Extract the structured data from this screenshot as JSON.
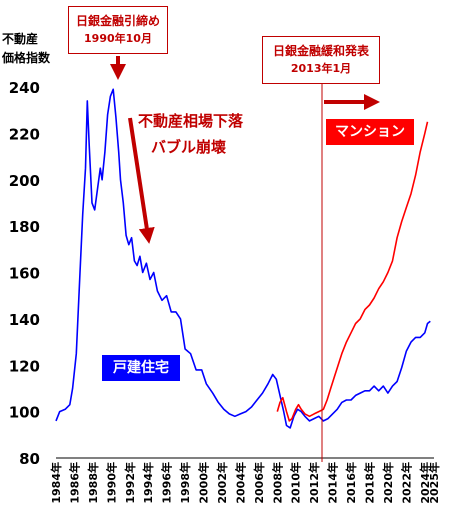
{
  "y_title_line1": "不動産",
  "y_title_line2": "価格指数",
  "annotations": {
    "boj_tightening": {
      "line1": "日銀金融引締め",
      "line2": "1990年10月"
    },
    "boj_easing": {
      "line1": "日銀金融緩和発表",
      "line2": "2013年1月"
    },
    "crash_line1": "不動産相場下落",
    "crash_line2": "バブル崩壊"
  },
  "colors": {
    "house": "#0000ff",
    "condo": "#ff0000",
    "annotation": "#c00000",
    "arrow": "#c00000"
  },
  "chart_data": {
    "type": "line",
    "ylim": [
      80,
      240
    ],
    "yticks": [
      80,
      100,
      120,
      140,
      160,
      180,
      200,
      220,
      240
    ],
    "xlim": [
      1984,
      2025
    ],
    "xtick_labels": [
      "1984年",
      "1986年",
      "1988年",
      "1990年",
      "1992年",
      "1994年",
      "1996年",
      "1998年",
      "2000年",
      "2002年",
      "2004年",
      "2006年",
      "2008年",
      "2010年",
      "2012年",
      "2014年",
      "2016年",
      "2018年",
      "2020年",
      "2022年",
      "2024年",
      "2025年"
    ],
    "xtick_years": [
      1984,
      1986,
      1988,
      1990,
      1992,
      1994,
      1996,
      1998,
      2000,
      2002,
      2004,
      2006,
      2008,
      2010,
      2012,
      2014,
      2016,
      2018,
      2020,
      2022,
      2024,
      2025
    ],
    "series": [
      {
        "name": "戸建住宅",
        "color": "#0000ff",
        "points": [
          [
            1984.0,
            96
          ],
          [
            1984.4,
            100
          ],
          [
            1985.0,
            101
          ],
          [
            1985.5,
            103
          ],
          [
            1985.8,
            110
          ],
          [
            1986.2,
            125
          ],
          [
            1986.6,
            160
          ],
          [
            1986.9,
            185
          ],
          [
            1987.2,
            205
          ],
          [
            1987.4,
            234
          ],
          [
            1987.6,
            215
          ],
          [
            1987.9,
            190
          ],
          [
            1988.2,
            187
          ],
          [
            1988.5,
            196
          ],
          [
            1988.8,
            205
          ],
          [
            1989.0,
            200
          ],
          [
            1989.3,
            212
          ],
          [
            1989.6,
            228
          ],
          [
            1989.9,
            236
          ],
          [
            1990.2,
            239
          ],
          [
            1990.5,
            227
          ],
          [
            1990.8,
            212
          ],
          [
            1991.0,
            200
          ],
          [
            1991.3,
            190
          ],
          [
            1991.6,
            176
          ],
          [
            1991.9,
            172
          ],
          [
            1992.2,
            175
          ],
          [
            1992.5,
            165
          ],
          [
            1992.8,
            163
          ],
          [
            1993.1,
            167
          ],
          [
            1993.4,
            160
          ],
          [
            1993.8,
            164
          ],
          [
            1994.2,
            157
          ],
          [
            1994.6,
            160
          ],
          [
            1995.0,
            152
          ],
          [
            1995.5,
            148
          ],
          [
            1996.0,
            150
          ],
          [
            1996.5,
            143
          ],
          [
            1997.0,
            143
          ],
          [
            1997.5,
            140
          ],
          [
            1998.0,
            127
          ],
          [
            1998.6,
            125
          ],
          [
            1999.2,
            118
          ],
          [
            1999.8,
            118
          ],
          [
            2000.3,
            112
          ],
          [
            2001.0,
            108
          ],
          [
            2001.6,
            104
          ],
          [
            2002.2,
            101
          ],
          [
            2002.8,
            99
          ],
          [
            2003.4,
            98
          ],
          [
            2004.0,
            99
          ],
          [
            2004.6,
            100
          ],
          [
            2005.2,
            102
          ],
          [
            2005.8,
            105
          ],
          [
            2006.4,
            108
          ],
          [
            2007.0,
            112
          ],
          [
            2007.5,
            116
          ],
          [
            2007.9,
            114
          ],
          [
            2008.3,
            107
          ],
          [
            2008.7,
            100
          ],
          [
            2009.0,
            94
          ],
          [
            2009.4,
            93
          ],
          [
            2009.8,
            98
          ],
          [
            2010.2,
            101
          ],
          [
            2010.6,
            100
          ],
          [
            2011.0,
            98
          ],
          [
            2011.5,
            96
          ],
          [
            2012.0,
            97
          ],
          [
            2012.5,
            98
          ],
          [
            2013.0,
            96
          ],
          [
            2013.5,
            97
          ],
          [
            2014.0,
            99
          ],
          [
            2014.5,
            101
          ],
          [
            2015.0,
            104
          ],
          [
            2015.5,
            105
          ],
          [
            2016.0,
            105
          ],
          [
            2016.5,
            107
          ],
          [
            2017.0,
            108
          ],
          [
            2017.5,
            109
          ],
          [
            2018.0,
            109
          ],
          [
            2018.5,
            111
          ],
          [
            2019.0,
            109
          ],
          [
            2019.5,
            111
          ],
          [
            2020.0,
            108
          ],
          [
            2020.5,
            111
          ],
          [
            2021.0,
            113
          ],
          [
            2021.5,
            119
          ],
          [
            2022.0,
            126
          ],
          [
            2022.5,
            130
          ],
          [
            2023.0,
            132
          ],
          [
            2023.5,
            132
          ],
          [
            2024.0,
            134
          ],
          [
            2024.3,
            138
          ],
          [
            2024.6,
            139
          ]
        ]
      },
      {
        "name": "マンション",
        "color": "#ff0000",
        "points": [
          [
            2008.0,
            100
          ],
          [
            2008.3,
            104
          ],
          [
            2008.6,
            106
          ],
          [
            2009.0,
            100
          ],
          [
            2009.3,
            96
          ],
          [
            2009.6,
            97
          ],
          [
            2010.0,
            101
          ],
          [
            2010.3,
            103
          ],
          [
            2010.6,
            101
          ],
          [
            2011.0,
            99
          ],
          [
            2011.5,
            98
          ],
          [
            2012.0,
            99
          ],
          [
            2012.5,
            100
          ],
          [
            2013.0,
            101
          ],
          [
            2013.4,
            105
          ],
          [
            2013.8,
            110
          ],
          [
            2014.2,
            115
          ],
          [
            2014.6,
            120
          ],
          [
            2015.0,
            125
          ],
          [
            2015.5,
            130
          ],
          [
            2016.0,
            134
          ],
          [
            2016.5,
            138
          ],
          [
            2017.0,
            140
          ],
          [
            2017.5,
            144
          ],
          [
            2018.0,
            146
          ],
          [
            2018.5,
            149
          ],
          [
            2019.0,
            153
          ],
          [
            2019.5,
            156
          ],
          [
            2020.0,
            160
          ],
          [
            2020.5,
            165
          ],
          [
            2021.0,
            175
          ],
          [
            2021.5,
            182
          ],
          [
            2022.0,
            188
          ],
          [
            2022.5,
            194
          ],
          [
            2023.0,
            202
          ],
          [
            2023.5,
            212
          ],
          [
            2024.0,
            220
          ],
          [
            2024.3,
            225
          ]
        ]
      }
    ]
  }
}
